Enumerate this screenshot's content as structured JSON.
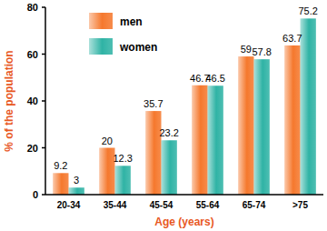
{
  "chart_data": {
    "type": "bar",
    "categories": [
      "20-34",
      "35-44",
      "45-54",
      "55-64",
      "65-74",
      ">75"
    ],
    "series": [
      {
        "name": "men",
        "color": "#f5782d",
        "values": [
          9.2,
          20,
          35.7,
          46.7,
          59,
          63.7
        ]
      },
      {
        "name": "women",
        "color": "#2fb3a5",
        "values": [
          3,
          12.3,
          23.2,
          46.5,
          57.8,
          75.2
        ]
      }
    ],
    "y_label": "% of the population",
    "x_label": "Age (years)",
    "ylim": [
      0,
      80
    ],
    "yticks": [
      0,
      20,
      40,
      60,
      80
    ],
    "grid": false,
    "legend": "top-left",
    "data_labels": true
  }
}
